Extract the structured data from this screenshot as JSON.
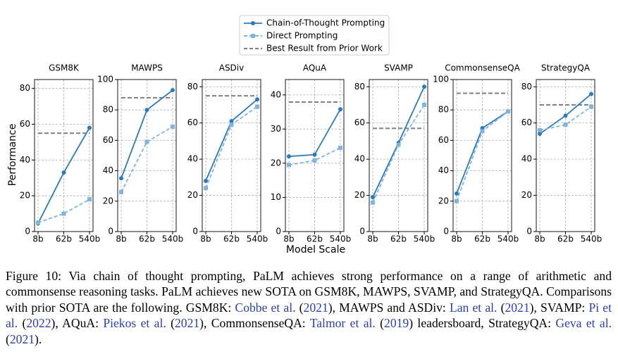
{
  "legend": {
    "entries": [
      {
        "name": "Chain-of-Thought Prompting",
        "color": "#2b7bba",
        "style": "solid",
        "marker": "circle"
      },
      {
        "name": "Direct Prompting",
        "color": "#7fb5dd",
        "style": "dashed",
        "marker": "square"
      },
      {
        "name": "Best Result from Prior Work",
        "color": "#808080",
        "style": "dashed",
        "marker": "none"
      }
    ]
  },
  "xlabel": "Model Scale",
  "ylabel": "Performance",
  "chart_data": [
    {
      "type": "line",
      "title": "GSM8K",
      "categories": [
        "8b",
        "62b",
        "540b"
      ],
      "ylim": [
        0,
        85
      ],
      "yticks": [
        0,
        20,
        40,
        60,
        80
      ],
      "grid": true,
      "series": [
        {
          "color": "#2b7bba",
          "values": [
            4.5,
            33,
            58
          ]
        },
        {
          "color": "#7fb5dd",
          "values": [
            5,
            10,
            18
          ]
        }
      ],
      "reference": 55
    },
    {
      "type": "line",
      "title": "MAWPS",
      "categories": [
        "8b",
        "62b",
        "540b"
      ],
      "ylim": [
        0,
        100
      ],
      "yticks": [
        0,
        20,
        40,
        60,
        80,
        100
      ],
      "grid": true,
      "series": [
        {
          "color": "#2b7bba",
          "values": [
            35,
            80,
            93
          ]
        },
        {
          "color": "#7fb5dd",
          "values": [
            26,
            59,
            69
          ]
        }
      ],
      "reference": 88
    },
    {
      "type": "line",
      "title": "ASDiv",
      "categories": [
        "8b",
        "62b",
        "540b"
      ],
      "ylim": [
        0,
        84
      ],
      "yticks": [
        0,
        20,
        40,
        60,
        80
      ],
      "grid": true,
      "series": [
        {
          "color": "#2b7bba",
          "values": [
            28,
            61,
            73
          ]
        },
        {
          "color": "#7fb5dd",
          "values": [
            24,
            59,
            69
          ]
        }
      ],
      "reference": 75
    },
    {
      "type": "line",
      "title": "AQuA",
      "categories": [
        "8b",
        "62b",
        "540b"
      ],
      "ylim": [
        0,
        44.5
      ],
      "yticks": [
        0,
        10,
        20,
        30,
        40
      ],
      "grid": true,
      "series": [
        {
          "color": "#2b7bba",
          "values": [
            22,
            22.5,
            35.8
          ]
        },
        {
          "color": "#7fb5dd",
          "values": [
            19.5,
            20.8,
            24.5
          ]
        }
      ],
      "reference": 37.9
    },
    {
      "type": "line",
      "title": "SVAMP",
      "categories": [
        "8b",
        "62b",
        "540b"
      ],
      "ylim": [
        0,
        84
      ],
      "yticks": [
        0,
        20,
        40,
        60,
        80
      ],
      "grid": true,
      "series": [
        {
          "color": "#2b7bba",
          "values": [
            19,
            49,
            80
          ]
        },
        {
          "color": "#7fb5dd",
          "values": [
            16,
            48,
            70
          ]
        }
      ],
      "reference": 57
    },
    {
      "type": "line",
      "title": "CommonsenseQA",
      "categories": [
        "8b",
        "62b",
        "540b"
      ],
      "ylim": [
        0,
        100
      ],
      "yticks": [
        0,
        20,
        40,
        60,
        80,
        100
      ],
      "grid": true,
      "series": [
        {
          "color": "#2b7bba",
          "values": [
            25,
            68,
            79
          ]
        },
        {
          "color": "#7fb5dd",
          "values": [
            20,
            66,
            79
          ]
        }
      ],
      "reference": 91
    },
    {
      "type": "line",
      "title": "StrategyQA",
      "categories": [
        "8b",
        "62b",
        "540b"
      ],
      "ylim": [
        0,
        84
      ],
      "yticks": [
        0,
        20,
        40,
        60,
        80
      ],
      "grid": true,
      "series": [
        {
          "color": "#2b7bba",
          "values": [
            54,
            64,
            76
          ]
        },
        {
          "color": "#7fb5dd",
          "values": [
            56,
            59,
            69
          ]
        }
      ],
      "reference": 70
    }
  ],
  "caption": [
    {
      "text": "Figure 10: Via chain of thought prompting, PaLM achieves strong performance on a range of arithmetic and commonsense reasoning tasks. PaLM achieves new SOTA on GSM8K, MAWPS, SVAMP, and StrategyQA. Comparisons with prior SOTA are the following. GSM8K: ",
      "link": false
    },
    {
      "text": "Cobbe et al.",
      "link": true
    },
    {
      "text": " (",
      "link": false
    },
    {
      "text": "2021",
      "link": true
    },
    {
      "text": "), MAWPS and ASDiv: ",
      "link": false
    },
    {
      "text": "Lan et al.",
      "link": true
    },
    {
      "text": " (",
      "link": false
    },
    {
      "text": "2021",
      "link": true
    },
    {
      "text": "), SVAMP: ",
      "link": false
    },
    {
      "text": "Pi et al.",
      "link": true
    },
    {
      "text": " (",
      "link": false
    },
    {
      "text": "2022",
      "link": true
    },
    {
      "text": "), AQuA: ",
      "link": false
    },
    {
      "text": "Piekos et al.",
      "link": true
    },
    {
      "text": " (",
      "link": false
    },
    {
      "text": "2021",
      "link": true
    },
    {
      "text": "), CommonsenseQA: ",
      "link": false
    },
    {
      "text": "Talmor et al.",
      "link": true
    },
    {
      "text": " (",
      "link": false
    },
    {
      "text": "2019",
      "link": true
    },
    {
      "text": ") leadersboard, StrategyQA: ",
      "link": false
    },
    {
      "text": "Geva et al.",
      "link": true
    },
    {
      "text": " (",
      "link": false
    },
    {
      "text": "2021",
      "link": true
    },
    {
      "text": ").",
      "link": false
    }
  ]
}
